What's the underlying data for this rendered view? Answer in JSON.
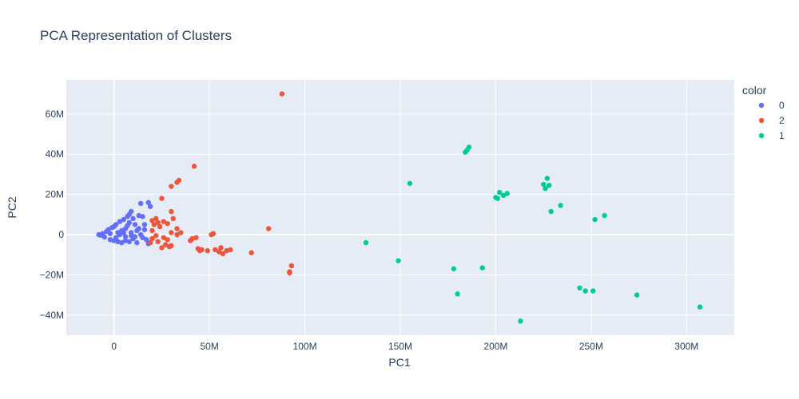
{
  "chart_data": {
    "type": "scatter",
    "title": "PCA Representation of Clusters",
    "xlabel": "PC1",
    "ylabel": "PC2",
    "xlim": [
      -25000000,
      325000000
    ],
    "ylim": [
      -50000000,
      77000000
    ],
    "xticks": [
      0,
      50000000,
      100000000,
      150000000,
      200000000,
      250000000,
      300000000
    ],
    "xtick_labels": [
      "0",
      "50M",
      "100M",
      "150M",
      "200M",
      "250M",
      "300M"
    ],
    "yticks": [
      -40000000,
      -20000000,
      0,
      20000000,
      40000000,
      60000000
    ],
    "ytick_labels": [
      "−40M",
      "−20M",
      "0",
      "20M",
      "40M",
      "60M"
    ],
    "grid": true,
    "legend": {
      "title": "color",
      "placement": "right"
    },
    "series": [
      {
        "name": "0",
        "color": "#636efa",
        "points": [
          [
            -8000000,
            0
          ],
          [
            -7000000,
            -300000
          ],
          [
            -6000000,
            500000
          ],
          [
            -5000000,
            -1200000
          ],
          [
            -4000000,
            1500000
          ],
          [
            -3000000,
            2500000
          ],
          [
            -2000000,
            -2500000
          ],
          [
            -1000000,
            3500000
          ],
          [
            0,
            4000000
          ],
          [
            0,
            -3000000
          ],
          [
            1000000,
            5000000
          ],
          [
            2000000,
            -3500000
          ],
          [
            3000000,
            6500000
          ],
          [
            4000000,
            -4000000
          ],
          [
            5000000,
            7500000
          ],
          [
            6000000,
            -3000000
          ],
          [
            7000000,
            9000000
          ],
          [
            8000000,
            10000000
          ],
          [
            8000000,
            -3500000
          ],
          [
            9000000,
            11500000
          ],
          [
            10000000,
            8000000
          ],
          [
            10000000,
            -2000000
          ],
          [
            11000000,
            5000000
          ],
          [
            12000000,
            -4000000
          ],
          [
            13000000,
            3000000
          ],
          [
            13000000,
            9500000
          ],
          [
            14000000,
            15500000
          ],
          [
            15000000,
            9000000
          ],
          [
            15000000,
            -1500000
          ],
          [
            16000000,
            5000000
          ],
          [
            17000000,
            -2500000
          ],
          [
            18000000,
            16000000
          ],
          [
            19000000,
            14000000
          ],
          [
            18000000,
            -4500000
          ],
          [
            2000000,
            1000000
          ],
          [
            4000000,
            2000000
          ],
          [
            6000000,
            3000000
          ],
          [
            6000000,
            -1000000
          ],
          [
            9000000,
            1000000
          ],
          [
            11000000,
            -1000000
          ],
          [
            -2000000,
            500000
          ],
          [
            1000000,
            -1500000
          ],
          [
            3000000,
            0
          ],
          [
            7000000,
            4500000
          ],
          [
            12000000,
            2000000
          ],
          [
            5000000,
            1000000
          ],
          [
            8000000,
            6000000
          ],
          [
            9000000,
            -500000
          ],
          [
            14000000,
            0
          ],
          [
            16000000,
            2500000
          ]
        ]
      },
      {
        "name": "2",
        "color": "#ef553b",
        "points": [
          [
            88000000,
            70000000
          ],
          [
            42000000,
            34000000
          ],
          [
            34000000,
            27000000
          ],
          [
            33000000,
            26000000
          ],
          [
            30000000,
            24000000
          ],
          [
            25000000,
            18000000
          ],
          [
            30000000,
            11500000
          ],
          [
            22000000,
            8000000
          ],
          [
            20000000,
            7000000
          ],
          [
            23000000,
            6000000
          ],
          [
            26000000,
            6500000
          ],
          [
            28000000,
            5500000
          ],
          [
            21000000,
            5000000
          ],
          [
            24000000,
            4000000
          ],
          [
            20000000,
            2000000
          ],
          [
            31000000,
            8000000
          ],
          [
            33000000,
            3000000
          ],
          [
            30000000,
            1000000
          ],
          [
            33000000,
            0
          ],
          [
            35000000,
            1000000
          ],
          [
            22000000,
            -500000
          ],
          [
            26000000,
            -1500000
          ],
          [
            28000000,
            -2500000
          ],
          [
            20000000,
            -2000000
          ],
          [
            19000000,
            -4000000
          ],
          [
            23000000,
            -3500000
          ],
          [
            27000000,
            -5000000
          ],
          [
            30000000,
            -5500000
          ],
          [
            25000000,
            -6500000
          ],
          [
            29000000,
            -6000000
          ],
          [
            40000000,
            -3000000
          ],
          [
            43000000,
            -1500000
          ],
          [
            41000000,
            -2000000
          ],
          [
            44000000,
            -7000000
          ],
          [
            46000000,
            -7500000
          ],
          [
            49000000,
            -8000000
          ],
          [
            52000000,
            500000
          ],
          [
            51000000,
            0
          ],
          [
            53000000,
            -7500000
          ],
          [
            55000000,
            -8500000
          ],
          [
            56000000,
            -6500000
          ],
          [
            57000000,
            -9500000
          ],
          [
            59000000,
            -8000000
          ],
          [
            61000000,
            -7500000
          ],
          [
            72000000,
            -9000000
          ],
          [
            81000000,
            3000000
          ],
          [
            92000000,
            -18500000
          ],
          [
            93000000,
            -15500000
          ],
          [
            92000000,
            -19000000
          ],
          [
            45000000,
            -8000000
          ]
        ]
      },
      {
        "name": "1",
        "color": "#00cc96",
        "points": [
          [
            132000000,
            -4000000
          ],
          [
            149000000,
            -13000000
          ],
          [
            155000000,
            25500000
          ],
          [
            178000000,
            -17000000
          ],
          [
            180000000,
            -29500000
          ],
          [
            184000000,
            41000000
          ],
          [
            185000000,
            42000000
          ],
          [
            186000000,
            43500000
          ],
          [
            193000000,
            -16500000
          ],
          [
            200000000,
            18500000
          ],
          [
            201000000,
            18000000
          ],
          [
            202000000,
            21000000
          ],
          [
            204000000,
            19500000
          ],
          [
            206000000,
            20500000
          ],
          [
            213000000,
            -43000000
          ],
          [
            225000000,
            25000000
          ],
          [
            226000000,
            23000000
          ],
          [
            227000000,
            28000000
          ],
          [
            228000000,
            24500000
          ],
          [
            229000000,
            11500000
          ],
          [
            234000000,
            14500000
          ],
          [
            244000000,
            -26500000
          ],
          [
            247000000,
            -28000000
          ],
          [
            251000000,
            -28000000
          ],
          [
            252000000,
            7500000
          ],
          [
            257000000,
            9500000
          ],
          [
            274000000,
            -30000000
          ],
          [
            307000000,
            -36000000
          ]
        ]
      }
    ]
  }
}
